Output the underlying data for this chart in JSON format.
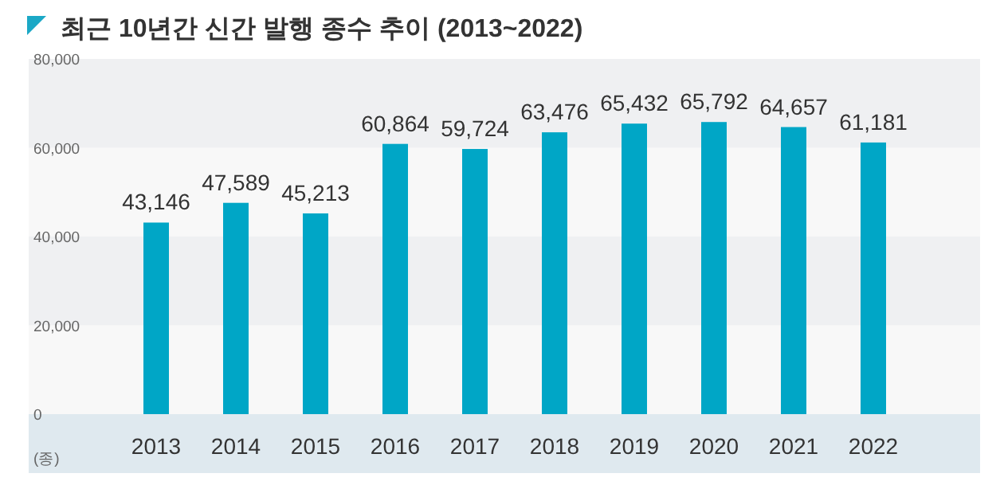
{
  "chart_data": {
    "type": "bar",
    "title": "최근 10년간 신간 발행 종수 추이 (2013~2022)",
    "ylabel": "(종)",
    "categories": [
      "2013",
      "2014",
      "2015",
      "2016",
      "2017",
      "2018",
      "2019",
      "2020",
      "2021",
      "2022"
    ],
    "values": [
      43146,
      47589,
      45213,
      60864,
      59724,
      63476,
      65432,
      65792,
      64657,
      61181
    ],
    "value_labels": [
      "43,146",
      "47,589",
      "45,213",
      "60,864",
      "59,724",
      "63,476",
      "65,432",
      "65,792",
      "64,657",
      "61,181"
    ],
    "color": "#00a6c6",
    "ylim": [
      0,
      80000
    ],
    "yticks": [
      {
        "value": 0,
        "label": "0"
      },
      {
        "value": 20000,
        "label": "20,000"
      },
      {
        "value": 40000,
        "label": "40,000"
      },
      {
        "value": 60000,
        "label": "60,000"
      },
      {
        "value": 80000,
        "label": "80,000"
      }
    ],
    "bands": [
      {
        "axis": "y",
        "from": 0,
        "to": 20000,
        "color": "#f8f8f8"
      },
      {
        "axis": "y",
        "from": 20000,
        "to": 40000,
        "color": "#eff0f2"
      },
      {
        "axis": "y",
        "from": 40000,
        "to": 60000,
        "color": "#f8f8f8"
      },
      {
        "axis": "y",
        "from": 60000,
        "to": 80000,
        "color": "#eff0f2"
      }
    ]
  }
}
